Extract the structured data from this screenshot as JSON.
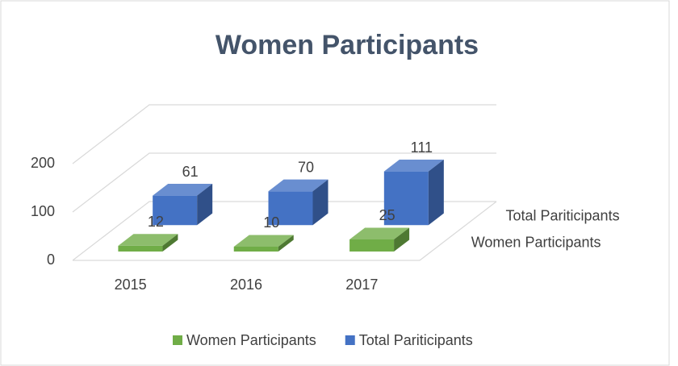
{
  "chart_data": {
    "type": "bar3d",
    "title": "Women Participants",
    "categories": [
      "2015",
      "2016",
      "2017"
    ],
    "series": [
      {
        "name": "Women Participants",
        "color": "#70ad47",
        "values": [
          12,
          10,
          25
        ]
      },
      {
        "name": "Total Pariticipants",
        "color": "#4472c4",
        "values": [
          61,
          70,
          111
        ]
      }
    ],
    "ylim": [
      0,
      200
    ],
    "yticks": [
      0,
      100,
      200
    ],
    "grid": true,
    "legend": "bottom"
  }
}
